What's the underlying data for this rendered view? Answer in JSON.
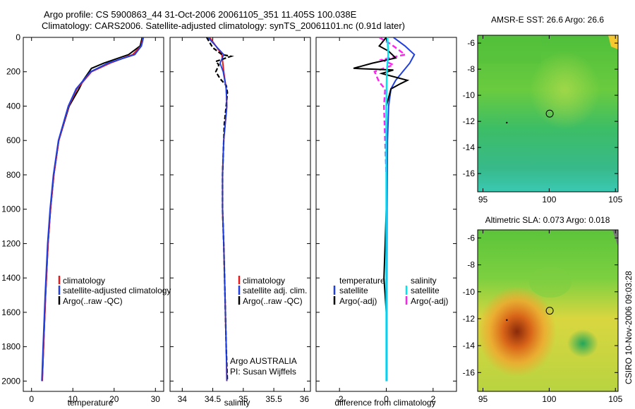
{
  "header": {
    "title_line1": "Argo profile: CS 5900863_44 31-Oct-2006 20061105_351 11.405S 100.038E",
    "title_line2": "Climatology: CARS2006. Satellite-adjusted climatology: synTS_20061101.nc (0.91d later)"
  },
  "side_label": "CSIRO 10-Nov-2006 09:03:28",
  "colors": {
    "climatology": "#e8191c",
    "satellite": "#1f3fe0",
    "argo": "#000000",
    "satellite_diff": "#00e5f0",
    "argo_diff_salinity": "#ff22ee"
  },
  "chart_data": [
    {
      "type": "line",
      "panel": "temperature",
      "xlabel": "temperature",
      "ylabel": "",
      "xlim": [
        -2,
        32
      ],
      "ylim": [
        2060,
        0
      ],
      "xticks": [
        0,
        10,
        20,
        30
      ],
      "yticks": [
        0,
        200,
        400,
        600,
        800,
        1000,
        1200,
        1400,
        1600,
        1800,
        2000
      ],
      "legend": [
        "climatology",
        "satellite-adjusted climatology",
        "Argo(..raw -QC)"
      ],
      "series": [
        {
          "name": "climatology",
          "depth": [
            0,
            50,
            100,
            150,
            200,
            300,
            400,
            600,
            800,
            1000,
            1200,
            1500,
            1800,
            2000
          ],
          "values": [
            27,
            26.5,
            24.5,
            19,
            14.5,
            11,
            9,
            6.6,
            5.4,
            4.6,
            4,
            3.4,
            2.9,
            2.6
          ]
        },
        {
          "name": "satellite-adjusted climatology",
          "depth": [
            0,
            50,
            100,
            150,
            200,
            300,
            400,
            600,
            800,
            1000,
            1200,
            1500,
            1800,
            2000
          ],
          "values": [
            27.1,
            26.6,
            25,
            18.5,
            14.3,
            10.8,
            8.9,
            6.5,
            5.3,
            4.5,
            3.9,
            3.3,
            2.8,
            2.5
          ]
        },
        {
          "name": "Argo(..raw -QC)",
          "depth": [
            0,
            50,
            100,
            150,
            180,
            250,
            300,
            400,
            600,
            800,
            1000,
            1200,
            1500,
            1800,
            2000
          ],
          "values": [
            26.8,
            26.3,
            23.5,
            17.5,
            14.5,
            12.5,
            11.5,
            9.1,
            6.6,
            5.4,
            4.6,
            4,
            3.4,
            2.9,
            2.6
          ]
        }
      ]
    },
    {
      "type": "line",
      "panel": "salinity",
      "xlabel": "salinity",
      "xlim": [
        33.8,
        36.1
      ],
      "ylim": [
        2060,
        0
      ],
      "xticks": [
        34,
        34.5,
        35,
        35.5,
        36
      ],
      "legend": [
        "climatology",
        "satellite adj. clim.",
        "Argo(..raw -QC)"
      ],
      "annotation": [
        "Argo AUSTRALIA",
        "PI: Susan Wijffels"
      ],
      "series": [
        {
          "name": "climatology",
          "depth": [
            0,
            50,
            100,
            200,
            300,
            400,
            600,
            800,
            1000,
            1200,
            1500,
            1800,
            2000
          ],
          "values": [
            34.45,
            34.55,
            34.65,
            34.68,
            34.72,
            34.73,
            34.68,
            34.66,
            34.66,
            34.68,
            34.7,
            34.72,
            34.73
          ]
        },
        {
          "name": "satellite adj. clim.",
          "depth": [
            0,
            50,
            100,
            150,
            200,
            300,
            400,
            600,
            800,
            1000,
            1200,
            1500,
            1800,
            2000
          ],
          "values": [
            34.42,
            34.55,
            34.68,
            34.62,
            34.67,
            34.72,
            34.73,
            34.68,
            34.66,
            34.66,
            34.68,
            34.7,
            34.72,
            34.73
          ]
        },
        {
          "name": "Argo(..raw -QC)",
          "depth": [
            0,
            30,
            60,
            100,
            110,
            140,
            160,
            200,
            240,
            280,
            320,
            400,
            500,
            600,
            800,
            1000,
            1200,
            1500,
            1800,
            2000
          ],
          "values": [
            34.4,
            34.45,
            34.5,
            34.65,
            34.8,
            34.55,
            34.6,
            34.55,
            34.62,
            34.72,
            34.74,
            34.72,
            34.69,
            34.68,
            34.66,
            34.66,
            34.68,
            34.7,
            34.72,
            34.74
          ]
        }
      ]
    },
    {
      "type": "line",
      "panel": "difference",
      "xlabel": "difference from climatology",
      "xlim": [
        -3,
        3
      ],
      "ylim": [
        2060,
        0
      ],
      "xticks": [
        -2,
        0,
        2
      ],
      "legend": {
        "temperature_heading": "temperature",
        "salinity_heading": "salinity",
        "temperature_items": [
          "satellite",
          "Argo(-adj)"
        ],
        "salinity_items": [
          "satellite",
          "Argo(-adj)"
        ]
      },
      "series": [
        {
          "name": "temperature satellite",
          "depth": [
            0,
            50,
            100,
            150,
            200,
            250,
            300,
            400,
            600,
            1000,
            1500,
            2000
          ],
          "values": [
            0.3,
            0.8,
            1.2,
            1.0,
            0.7,
            0.4,
            0.2,
            0.1,
            0.05,
            0.03,
            0.02,
            0.02
          ]
        },
        {
          "name": "temperature Argo(-adj)",
          "depth": [
            0,
            50,
            80,
            120,
            150,
            180,
            190,
            210,
            250,
            270,
            300,
            400,
            600,
            1000,
            1400,
            1600,
            1800,
            2000
          ],
          "values": [
            0,
            -0.3,
            0.1,
            0.4,
            -0.6,
            -1.4,
            0.3,
            -0.2,
            0.9,
            0.6,
            0.2,
            0,
            0,
            0,
            -0.1,
            0,
            0,
            0
          ]
        },
        {
          "name": "salinity satellite",
          "depth": [
            0,
            100,
            200,
            400,
            800,
            1200,
            1600,
            2000
          ],
          "values": [
            0.05,
            0.08,
            0.02,
            0,
            0,
            0,
            0,
            0
          ]
        },
        {
          "name": "salinity Argo(-adj)",
          "depth": [
            0,
            40,
            70,
            100,
            130,
            160,
            200,
            260,
            300,
            400,
            600,
            800
          ],
          "values": [
            -0.3,
            0.2,
            0.5,
            0.8,
            -0.2,
            0.3,
            -0.5,
            -0.3,
            -0.05,
            -0.1,
            -0.05,
            0
          ]
        }
      ]
    },
    {
      "type": "heatmap",
      "panel": "amsr-sst-map",
      "title": "AMSR-E SST: 26.6  Argo: 26.6",
      "xlim": [
        94.6,
        105.2
      ],
      "ylim": [
        -17.4,
        -5.4
      ],
      "xticks": [
        95,
        100,
        105
      ],
      "yticks": [
        -6,
        -8,
        -10,
        -12,
        -14,
        -16
      ],
      "argo_position": {
        "lon": 100.038,
        "lat": -11.405
      }
    },
    {
      "type": "heatmap",
      "panel": "altimetric-sla-map",
      "title": "Altimetric SLA: 0.073  Argo: 0.018",
      "xlim": [
        94.6,
        105.2
      ],
      "ylim": [
        -17.4,
        -5.4
      ],
      "xticks": [
        95,
        100,
        105
      ],
      "yticks": [
        -6,
        -8,
        -10,
        -12,
        -14,
        -16
      ],
      "argo_position": {
        "lon": 100.038,
        "lat": -11.405
      }
    }
  ]
}
